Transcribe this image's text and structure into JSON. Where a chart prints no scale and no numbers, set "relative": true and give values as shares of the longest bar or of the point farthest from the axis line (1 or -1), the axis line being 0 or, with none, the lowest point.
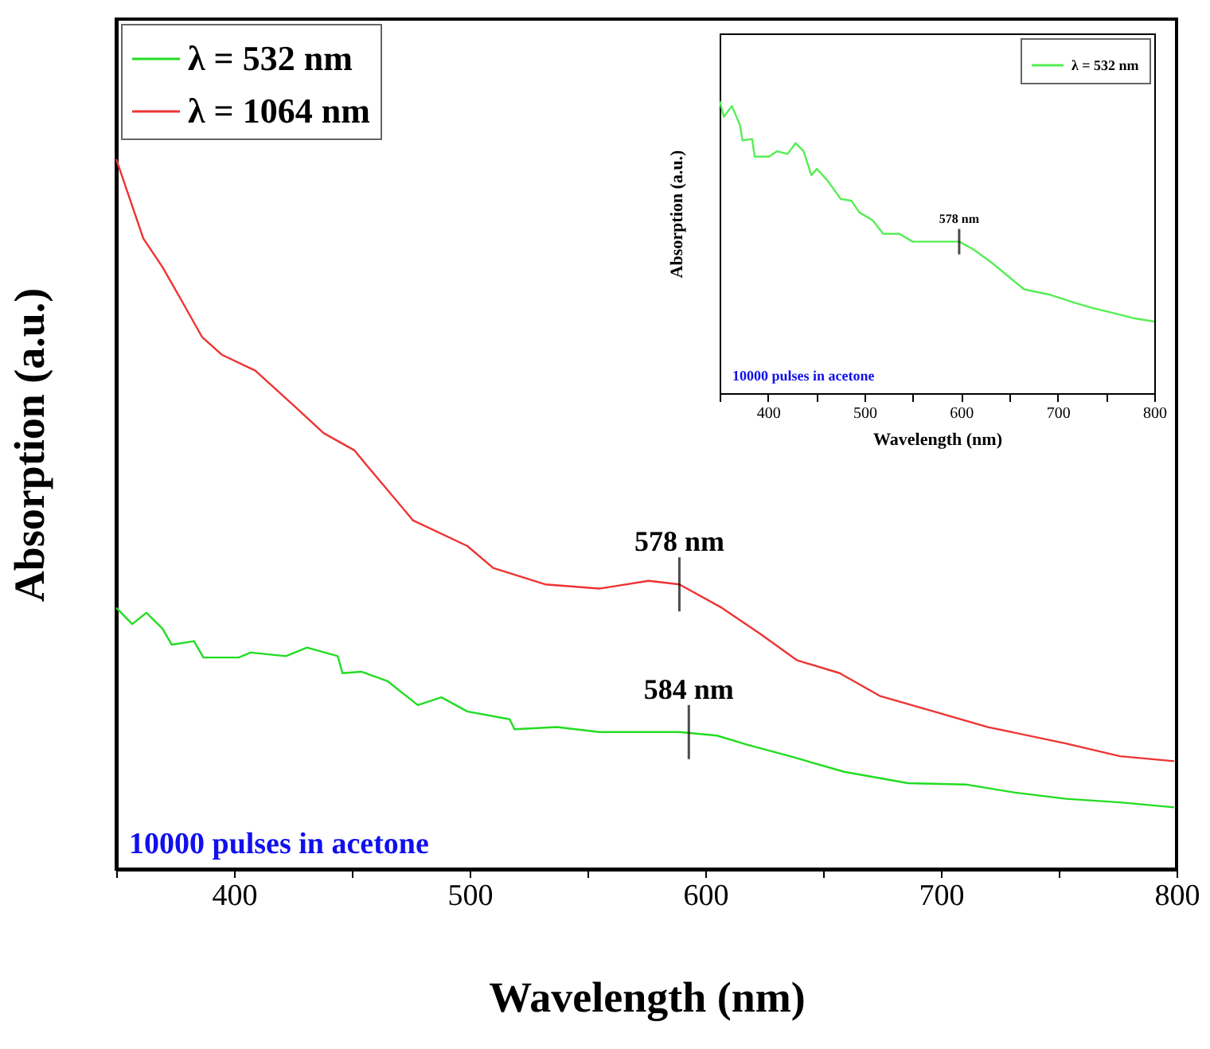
{
  "chart_data": [
    {
      "type": "line",
      "xlabel": "Wavelength (nm)",
      "ylabel": "Absorption (a.u.)",
      "relative": true,
      "legend": "top left",
      "xlim": [
        350,
        800
      ],
      "xticks": [
        {
          "value": 350,
          "label": null
        },
        400,
        {
          "value": 450,
          "label": null
        },
        500,
        {
          "value": 550,
          "label": null
        },
        600,
        {
          "value": 650,
          "label": null
        },
        700,
        {
          "value": 750,
          "label": null
        },
        800
      ],
      "series": [
        {
          "name": "λ = 532 nm",
          "color": "#22dd22",
          "x": [
            350,
            356.8,
            362.8,
            369.6,
            373.6,
            383,
            387,
            402,
            407,
            422,
            431,
            444,
            446,
            454,
            465,
            478,
            488,
            499,
            517,
            519,
            537,
            555,
            589,
            605,
            618,
            636,
            659,
            686,
            711,
            731,
            753,
            776,
            799
          ],
          "values": [
            0.368,
            0.345,
            0.361,
            0.339,
            0.316,
            0.321,
            0.298,
            0.298,
            0.305,
            0.3,
            0.312,
            0.3,
            0.276,
            0.278,
            0.265,
            0.231,
            0.242,
            0.222,
            0.211,
            0.197,
            0.2,
            0.193,
            0.193,
            0.188,
            0.175,
            0.159,
            0.137,
            0.121,
            0.119,
            0.108,
            0.099,
            0.094,
            0.087
          ]
        },
        {
          "name": "λ = 1064 nm",
          "color": "#ee3333",
          "x": [
            350,
            361.5,
            369.6,
            377,
            386.5,
            395,
            409,
            424,
            438,
            451,
            456,
            476,
            499,
            510,
            532,
            555,
            576,
            589,
            607,
            623,
            639,
            657,
            674,
            699,
            720,
            753,
            776,
            799
          ],
          "values": [
            1.0,
            0.888,
            0.848,
            0.805,
            0.749,
            0.724,
            0.702,
            0.657,
            0.614,
            0.59,
            0.57,
            0.491,
            0.455,
            0.424,
            0.401,
            0.395,
            0.406,
            0.401,
            0.368,
            0.332,
            0.294,
            0.276,
            0.244,
            0.22,
            0.2,
            0.177,
            0.159,
            0.152
          ]
        }
      ],
      "annotations": [
        {
          "text": "578 nm",
          "x": 589,
          "y": 0.401
        },
        {
          "text": "584 nm",
          "x": 593,
          "y": 0.193
        },
        "10000 pulses in acetone"
      ]
    },
    {
      "type": "line",
      "xlabel": "Wavelength (nm)",
      "ylabel": "Absorption (a.u.)",
      "relative": true,
      "legend": "top right",
      "xlim": [
        350,
        800
      ],
      "xticks": [
        {
          "value": 350,
          "label": null
        },
        400,
        {
          "value": 450,
          "label": null
        },
        500,
        {
          "value": 550,
          "label": null
        },
        600,
        {
          "value": 650,
          "label": null
        },
        700,
        {
          "value": 750,
          "label": null
        },
        800
      ],
      "series": [
        {
          "name": "λ = 532 nm",
          "color": "#55ee55",
          "x": [
            350,
            354.4,
            362.7,
            370.9,
            373.7,
            383.6,
            386.3,
            401.2,
            409.4,
            420.4,
            428.7,
            437,
            445,
            450.7,
            461.7,
            475.4,
            486.4,
            494.7,
            508.4,
            519.4,
            536,
            549.8,
            582.6,
            598.1,
            612.9,
            632.2,
            648.7,
            665.2,
            692.7,
            717.5,
            736.7,
            758.7,
            780.7,
            800
          ],
          "values": [
            1.0,
            0.945,
            0.982,
            0.918,
            0.864,
            0.869,
            0.809,
            0.809,
            0.827,
            0.818,
            0.855,
            0.827,
            0.745,
            0.767,
            0.727,
            0.664,
            0.658,
            0.618,
            0.591,
            0.545,
            0.545,
            0.518,
            0.518,
            0.518,
            0.491,
            0.445,
            0.4,
            0.355,
            0.336,
            0.309,
            0.291,
            0.273,
            0.255,
            0.245
          ]
        }
      ],
      "annotations": [
        {
          "text": "578 nm",
          "x": 598,
          "y": 0.518
        },
        "10000 pulses in acetone"
      ]
    }
  ]
}
